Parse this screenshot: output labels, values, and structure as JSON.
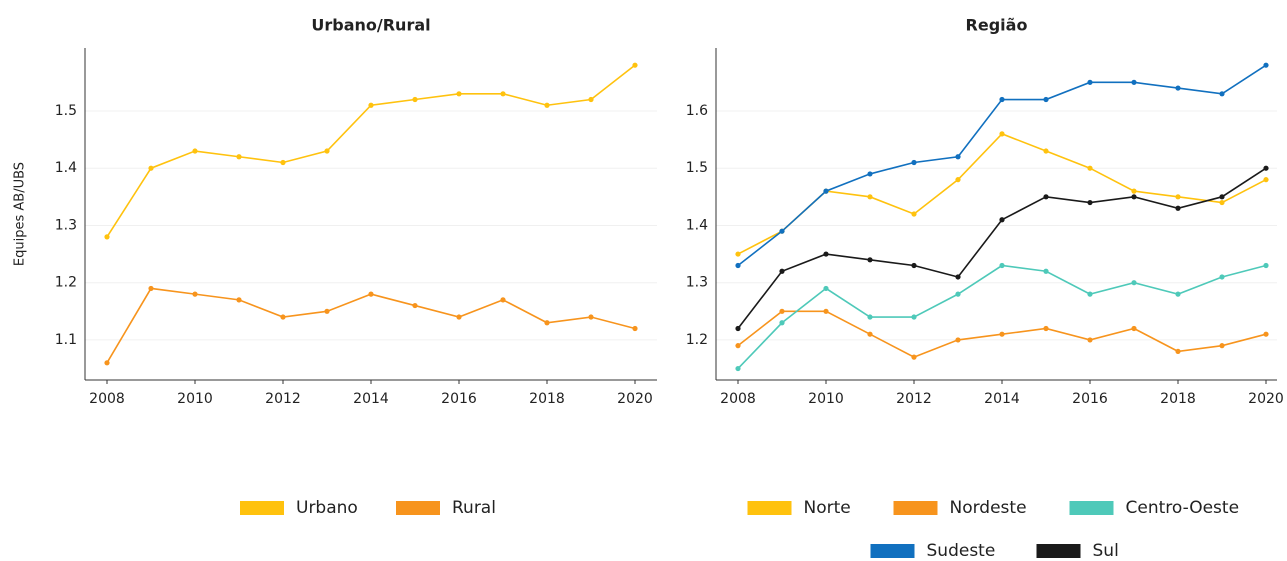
{
  "chart_data": [
    {
      "type": "line",
      "title": "Urbano/Rural",
      "y_label": "Equipes AB/UBS",
      "x": [
        2008,
        2009,
        2010,
        2011,
        2012,
        2013,
        2014,
        2015,
        2016,
        2017,
        2018,
        2019,
        2020
      ],
      "xlim": [
        2007.5,
        2020.5
      ],
      "xticks": [
        2008,
        2010,
        2012,
        2014,
        2016,
        2018,
        2020
      ],
      "ylim": [
        1.03,
        1.61
      ],
      "yticks": [
        1.1,
        1.2,
        1.3,
        1.4,
        1.5
      ],
      "grid": true,
      "legend": "bottom",
      "series": [
        {
          "name": "Urbano",
          "color": "#ffc20e",
          "values": [
            1.28,
            1.4,
            1.43,
            1.42,
            1.41,
            1.43,
            1.51,
            1.52,
            1.53,
            1.53,
            1.51,
            1.52,
            1.58
          ]
        },
        {
          "name": "Rural",
          "color": "#f7941d",
          "values": [
            1.06,
            1.19,
            1.18,
            1.17,
            1.14,
            1.15,
            1.18,
            1.16,
            1.14,
            1.17,
            1.13,
            1.14,
            1.12
          ]
        }
      ]
    },
    {
      "type": "line",
      "title": "Região",
      "x": [
        2008,
        2009,
        2010,
        2011,
        2012,
        2013,
        2014,
        2015,
        2016,
        2017,
        2018,
        2019,
        2020
      ],
      "xlim": [
        2007.5,
        2020.25
      ],
      "xticks": [
        2008,
        2010,
        2012,
        2014,
        2016,
        2018,
        2020
      ],
      "ylim": [
        1.13,
        1.71
      ],
      "yticks": [
        1.2,
        1.3,
        1.4,
        1.5,
        1.6
      ],
      "grid": true,
      "legend": "bottom",
      "series": [
        {
          "name": "Norte",
          "color": "#ffc20e",
          "values": [
            1.35,
            1.39,
            1.46,
            1.45,
            1.42,
            1.48,
            1.56,
            1.53,
            1.5,
            1.46,
            1.45,
            1.44,
            1.48
          ]
        },
        {
          "name": "Nordeste",
          "color": "#f7941d",
          "values": [
            1.19,
            1.25,
            1.25,
            1.21,
            1.17,
            1.2,
            1.21,
            1.22,
            1.2,
            1.22,
            1.18,
            1.19,
            1.21
          ]
        },
        {
          "name": "Centro-Oeste",
          "color": "#4ec9b9",
          "values": [
            1.15,
            1.23,
            1.29,
            1.24,
            1.24,
            1.28,
            1.33,
            1.32,
            1.28,
            1.3,
            1.28,
            1.31,
            1.33
          ]
        },
        {
          "name": "Sudeste",
          "color": "#1170bf",
          "values": [
            1.33,
            1.39,
            1.46,
            1.49,
            1.51,
            1.52,
            1.62,
            1.62,
            1.65,
            1.65,
            1.64,
            1.63,
            1.68
          ]
        },
        {
          "name": "Sul",
          "color": "#1a1a1a",
          "values": [
            1.22,
            1.32,
            1.35,
            1.34,
            1.33,
            1.31,
            1.41,
            1.45,
            1.44,
            1.45,
            1.43,
            1.45,
            1.5
          ]
        }
      ]
    }
  ]
}
